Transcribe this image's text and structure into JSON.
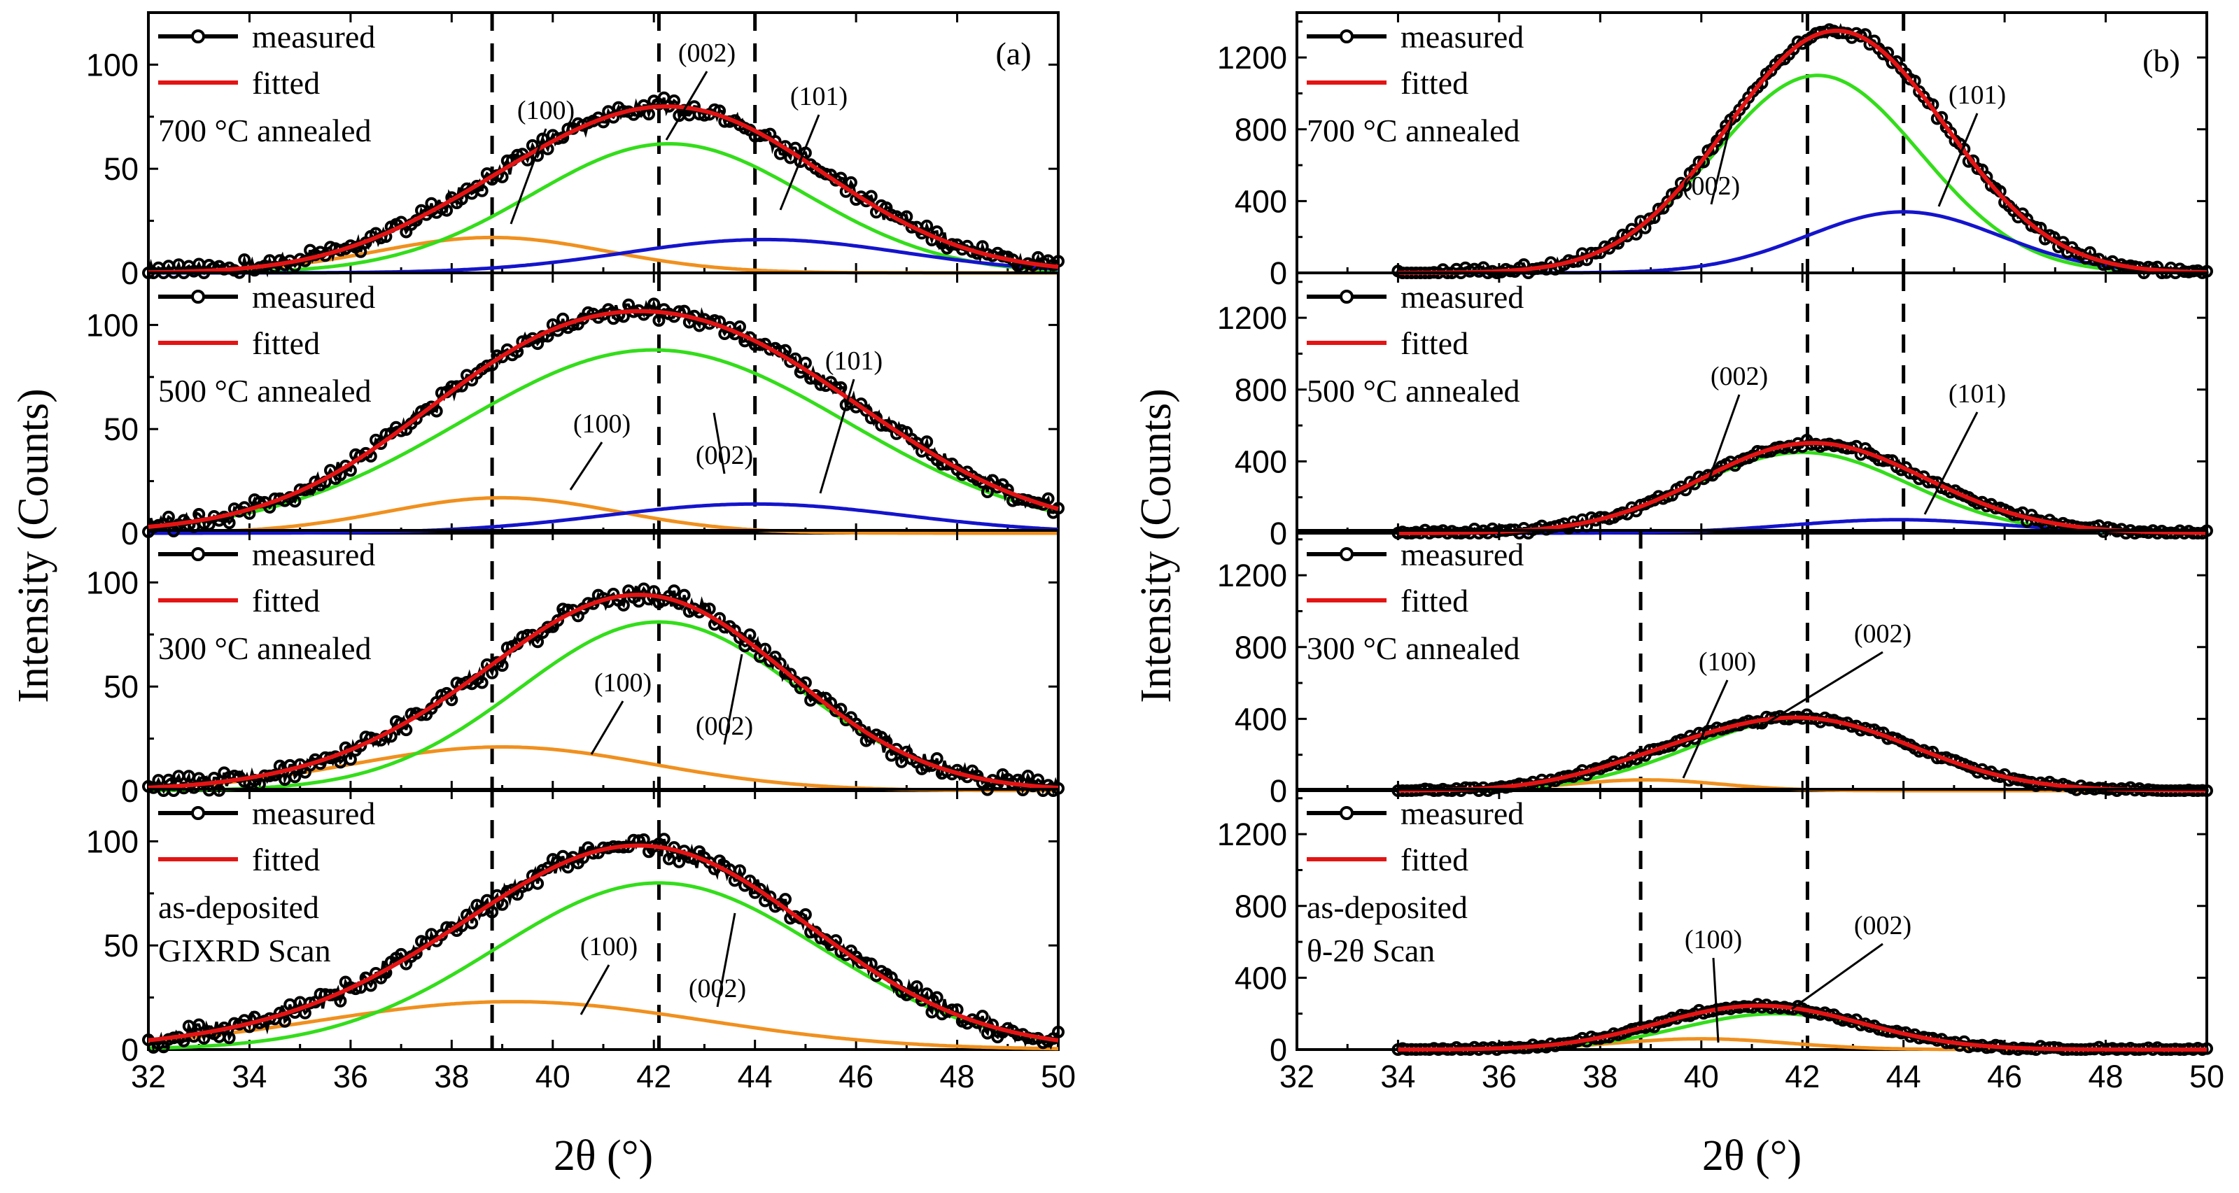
{
  "figure": {
    "ylabel": "Intensity (Counts)",
    "xlabel": "2θ (°)",
    "legend": {
      "measured": "measured",
      "fitted": "fitted"
    }
  },
  "colors": {
    "measured": "#000000",
    "fitted": "#e41414",
    "p100": "#f0901e",
    "p002": "#33dd1a",
    "p101": "#1414cc"
  },
  "chart_data": [
    {
      "type": "line",
      "panel": "(a)",
      "title": "",
      "xlabel": "2θ (°)",
      "ylabel": "Intensity (Counts)",
      "xlim": [
        32,
        50
      ],
      "xticks": [
        32,
        34,
        36,
        38,
        40,
        42,
        44,
        46,
        48,
        50
      ],
      "xtick_labels": [
        "32",
        "34",
        "36",
        "38",
        "40",
        "42",
        "44",
        "46",
        "48",
        "50"
      ],
      "ylim": [
        0,
        125
      ],
      "yticks": [
        0,
        50,
        100
      ],
      "ytick_labels": [
        "0",
        "50",
        "100"
      ],
      "reference_lines": [
        38.8,
        42.1,
        44.0
      ],
      "subplots": [
        {
          "condition": [
            "700 °C annealed"
          ],
          "xrange": [
            32,
            50
          ],
          "noise": 3,
          "peaks": [
            {
              "id": "p100",
              "label": "(100)",
              "center": 38.8,
              "amplitude": 17,
              "fwhm": 5.4
            },
            {
              "id": "p002",
              "label": "(002)",
              "center": 42.3,
              "amplitude": 62,
              "fwhm": 6.4
            },
            {
              "id": "p101",
              "label": "(101)",
              "center": 44.2,
              "amplitude": 16,
              "fwhm": 6.5
            }
          ],
          "refs": [
            38.8,
            42.1,
            44.0
          ]
        },
        {
          "condition": [
            "500 °C annealed"
          ],
          "xrange": [
            32,
            50
          ],
          "noise": 3,
          "peaks": [
            {
              "id": "p100",
              "label": "(100)",
              "center": 39.0,
              "amplitude": 17,
              "fwhm": 5.4
            },
            {
              "id": "p002",
              "label": "(002)",
              "center": 42.0,
              "amplitude": 88,
              "fwhm": 9.0
            },
            {
              "id": "p101",
              "label": "(101)",
              "center": 44.0,
              "amplitude": 14,
              "fwhm": 7.0
            }
          ],
          "refs": [
            38.8,
            42.1,
            44.0
          ]
        },
        {
          "condition": [
            "300 °C annealed"
          ],
          "xrange": [
            32,
            50
          ],
          "noise": 3.5,
          "peaks": [
            {
              "id": "p100",
              "label": "(100)",
              "center": 39.0,
              "amplitude": 21,
              "fwhm": 7.0
            },
            {
              "id": "p002",
              "label": "(002)",
              "center": 42.1,
              "amplitude": 81,
              "fwhm": 6.5
            }
          ],
          "refs": [
            38.8,
            42.1
          ]
        },
        {
          "condition": [
            "as-deposited",
            "GIXRD Scan"
          ],
          "xrange": [
            32,
            50
          ],
          "noise": 3.5,
          "peaks": [
            {
              "id": "p100",
              "label": "(100)",
              "center": 39.2,
              "amplitude": 23,
              "fwhm": 9.0
            },
            {
              "id": "p002",
              "label": "(002)",
              "center": 42.1,
              "amplitude": 80,
              "fwhm": 7.6
            }
          ],
          "refs": [
            38.8,
            42.1
          ]
        }
      ]
    },
    {
      "type": "line",
      "panel": "(b)",
      "title": "",
      "xlabel": "2θ (°)",
      "ylabel": "Intensity (Counts)",
      "xlim": [
        32,
        50
      ],
      "xticks": [
        32,
        34,
        36,
        38,
        40,
        42,
        44,
        46,
        48,
        50
      ],
      "xtick_labels": [
        "32",
        "34",
        "36",
        "38",
        "40",
        "42",
        "44",
        "46",
        "48",
        "50"
      ],
      "ylim": [
        0,
        1450
      ],
      "yticks": [
        0,
        400,
        800,
        1200
      ],
      "ytick_labels": [
        "0",
        "400",
        "800",
        "1200"
      ],
      "reference_lines": [
        38.8,
        42.1,
        44.0
      ],
      "subplots": [
        {
          "condition": [
            "700 °C annealed"
          ],
          "xrange": [
            34,
            50
          ],
          "noise": 20,
          "peaks": [
            {
              "id": "p002",
              "label": "(002)",
              "center": 42.3,
              "amplitude": 1100,
              "fwhm": 4.8
            },
            {
              "id": "p101",
              "label": "(101)",
              "center": 44.0,
              "amplitude": 340,
              "fwhm": 4.5
            }
          ],
          "refs": [
            42.1,
            44.0
          ]
        },
        {
          "condition": [
            "500 °C annealed"
          ],
          "xrange": [
            34,
            50
          ],
          "noise": 15,
          "peaks": [
            {
              "id": "p002",
              "label": "(002)",
              "center": 42.0,
              "amplitude": 450,
              "fwhm": 5.0
            },
            {
              "id": "p101",
              "label": "(101)",
              "center": 43.9,
              "amplitude": 75,
              "fwhm": 5.0
            }
          ],
          "refs": [
            42.1,
            44.0
          ]
        },
        {
          "condition": [
            "300 °C annealed"
          ],
          "xrange": [
            34,
            50
          ],
          "noise": 12,
          "peaks": [
            {
              "id": "p100",
              "label": "(100)",
              "center": 38.9,
              "amplitude": 60,
              "fwhm": 3.5
            },
            {
              "id": "p002",
              "label": "(002)",
              "center": 42.0,
              "amplitude": 400,
              "fwhm": 5.2
            }
          ],
          "refs": [
            38.8,
            42.1
          ]
        },
        {
          "condition": [
            "as-deposited",
            "θ-2θ Scan"
          ],
          "xrange": [
            34,
            50
          ],
          "noise": 10,
          "peaks": [
            {
              "id": "p100",
              "label": "(100)",
              "center": 40.0,
              "amplitude": 60,
              "fwhm": 4.0
            },
            {
              "id": "p002",
              "label": "(002)",
              "center": 41.5,
              "amplitude": 200,
              "fwhm": 4.5
            }
          ],
          "refs": [
            38.8,
            42.1
          ]
        }
      ]
    }
  ]
}
